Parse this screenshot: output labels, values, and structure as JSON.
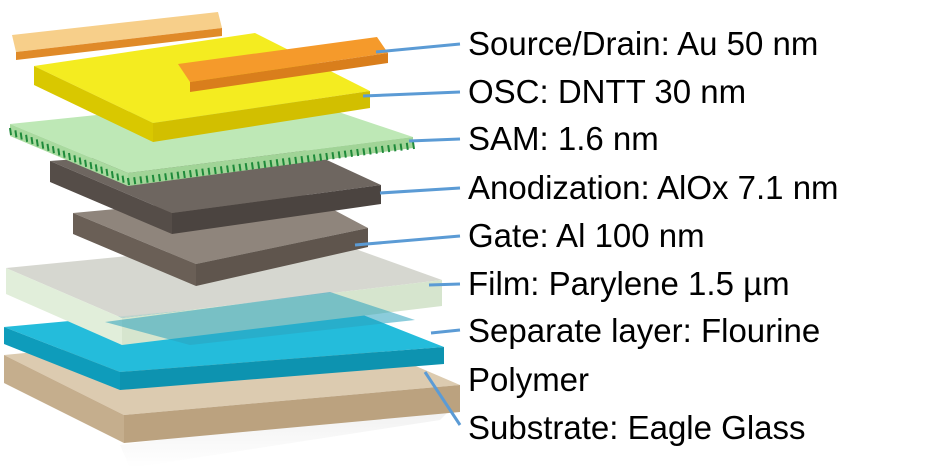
{
  "layers": [
    {
      "id": "source-drain",
      "label": "Source/Drain: Au 50 nm",
      "color": "#F59A2B"
    },
    {
      "id": "osc",
      "label": "OSC: DNTT 30 nm",
      "color": "#F2E600"
    },
    {
      "id": "sam",
      "label": "SAM: 1.6 nm",
      "color": "#B9E6B0"
    },
    {
      "id": "anodization",
      "label": "Anodization: AlOx 7.1 nm",
      "color": "#5E5650"
    },
    {
      "id": "gate",
      "label": "Gate: Al 100 nm",
      "color": "#776B62"
    },
    {
      "id": "film",
      "label": "Film: Parylene 1.5 µm",
      "color": "#D9E8D2"
    },
    {
      "id": "separate",
      "label": "Separate layer: Flourine",
      "label_line2": "Polymer",
      "color": "#11B0D0"
    },
    {
      "id": "substrate",
      "label": "Substrate: Eagle Glass",
      "color": "#CDB89B"
    }
  ],
  "leader_color": "#5B9BD5"
}
